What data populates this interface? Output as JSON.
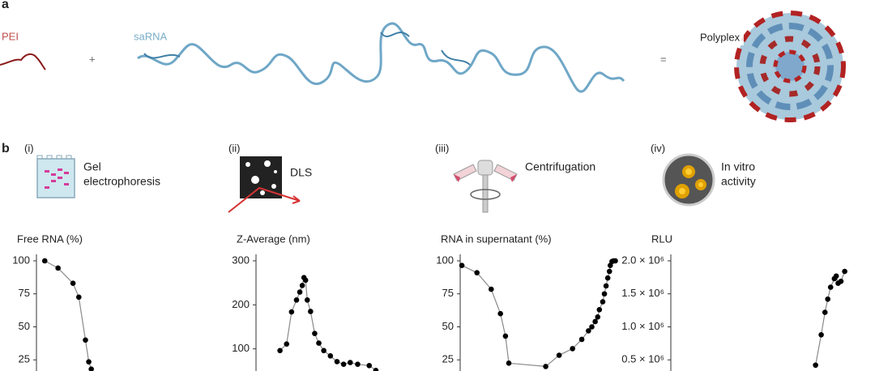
{
  "figure": {
    "a": {
      "label": "a",
      "pei": "PEI",
      "plus": "+",
      "sarna": "saRNA",
      "equals": "=",
      "polyplex": "Polyplex"
    },
    "b": {
      "label": "b",
      "methods": [
        {
          "num": "(i)",
          "lines": [
            "Gel",
            "electrophoresis"
          ]
        },
        {
          "num": "(ii)",
          "lines": [
            "DLS"
          ]
        },
        {
          "num": "(iii)",
          "lines": [
            "Centrifugation"
          ]
        },
        {
          "num": "(iv)",
          "lines": [
            "In vitro",
            "activity"
          ]
        }
      ]
    }
  },
  "chart_data": [
    {
      "type": "scatter",
      "y_label": "Free RNA (%)",
      "color": "#000000",
      "line_color": "#8a8a8a",
      "x": [
        1.0,
        2.6,
        4.4,
        5.1,
        5.9,
        6.3,
        6.6
      ],
      "values": [
        100,
        94.5,
        83,
        72.5,
        40,
        23.5,
        18
      ],
      "xlim": [
        0,
        20
      ],
      "ylim": [
        0,
        100
      ],
      "yticks": [
        25,
        50,
        75,
        100
      ]
    },
    {
      "type": "scatter",
      "y_label": "Z-Average (nm)",
      "color": "#000000",
      "line_color": "#8a8a8a",
      "x": [
        2.9,
        3.7,
        4.3,
        4.9,
        5.3,
        5.6,
        5.8,
        6.0,
        6.2,
        6.6,
        7.1,
        7.6,
        8.2,
        9.0,
        9.8,
        10.6,
        11.4,
        12.3,
        13.7,
        14.5
      ],
      "values": [
        96,
        111,
        184,
        211,
        229,
        244,
        262,
        256,
        211,
        185,
        135,
        113,
        96,
        84,
        71,
        65,
        69,
        65,
        62,
        51
      ],
      "xlim": [
        0,
        20
      ],
      "ylim": [
        0,
        300
      ],
      "yticks": [
        100,
        200,
        300
      ]
    },
    {
      "type": "scatter",
      "y_label": "RNA in supernatant (%)",
      "color": "#000000",
      "line_color": "#8a8a8a",
      "x": [
        0.2,
        2.0,
        3.7,
        4.8,
        5.4,
        5.8,
        10.2,
        11.8,
        13.4,
        14.5,
        15.3,
        15.7,
        16.1,
        16.4,
        16.6,
        17.0,
        17.2,
        17.4,
        17.6,
        17.8,
        17.9,
        18.1,
        18.3,
        18.5
      ],
      "values": [
        96.5,
        91,
        78.5,
        60,
        43,
        22.5,
        20,
        28.5,
        33.5,
        40.5,
        47,
        50,
        54,
        57.5,
        63,
        69,
        75,
        81,
        87,
        92,
        96.5,
        99.5,
        100,
        100
      ],
      "xlim": [
        0,
        20
      ],
      "ylim": [
        0,
        100
      ],
      "yticks": [
        25,
        50,
        75,
        100
      ]
    },
    {
      "type": "scatter",
      "y_label": "RLU",
      "color": "#000000",
      "line_color": "#8a8a8a",
      "x": [
        15.4,
        16.0,
        16.4,
        16.7,
        17.0,
        17.4,
        17.6,
        17.8,
        18.1,
        18.5
      ],
      "values": [
        420000,
        880000,
        1220000,
        1420000,
        1600000,
        1730000,
        1770000,
        1660000,
        1690000,
        1840000
      ],
      "xlim": [
        0,
        20
      ],
      "ylim": [
        0,
        2000000
      ],
      "yticks": [
        {
          "value": 500000,
          "label": "0.5 × 10⁶"
        },
        {
          "value": 1000000,
          "label": "1.0 × 10⁶"
        },
        {
          "value": 1500000,
          "label": "1.5 × 10⁶"
        },
        {
          "value": 2000000,
          "label": "2.0 × 10⁶"
        }
      ]
    }
  ]
}
